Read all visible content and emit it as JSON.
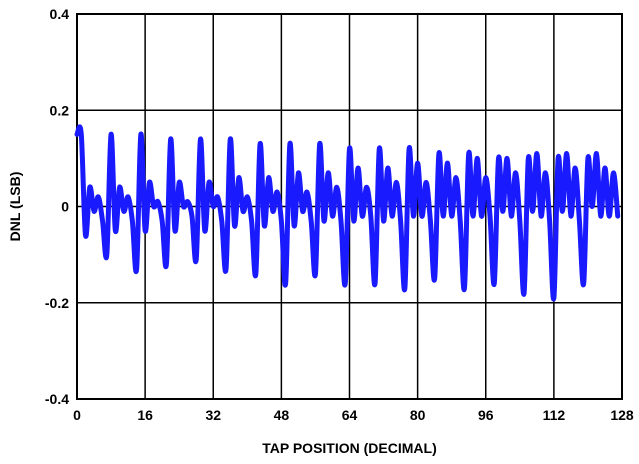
{
  "chart_data": {
    "type": "line",
    "title": "",
    "xlabel": "TAP POSITION (DECIMAL)",
    "ylabel": "DNL (LSB)",
    "xlim": [
      0,
      128
    ],
    "ylim": [
      -0.4,
      0.4
    ],
    "grid": true,
    "xticks": [
      0,
      16,
      32,
      48,
      64,
      80,
      96,
      112,
      128
    ],
    "xtick_labels": [
      "0",
      "16",
      "32",
      "48",
      "64",
      "80",
      "96",
      "112",
      "128"
    ],
    "yticks": [
      0.4,
      0.2,
      0,
      -0.2,
      -0.4
    ],
    "ytick_labels": [
      "0.4",
      "0.2",
      "0",
      "-0.2",
      "-0.4"
    ],
    "line_color": "#1a1aff",
    "series": [
      {
        "x": [
          0,
          1,
          2,
          3,
          4,
          5,
          6,
          7,
          8,
          9,
          10,
          11,
          12,
          13,
          14,
          15,
          16,
          17,
          18,
          19,
          20,
          21,
          22,
          23,
          24,
          25,
          26,
          27,
          28,
          29,
          30,
          31,
          32,
          33,
          34,
          35,
          36,
          37,
          38,
          39,
          40,
          41,
          42,
          43,
          44,
          45,
          46,
          47,
          48,
          49,
          50,
          51,
          52,
          53,
          54,
          55,
          56,
          57,
          58,
          59,
          60,
          61,
          62,
          63,
          64,
          65,
          66,
          67,
          68,
          69,
          70,
          71,
          72,
          73,
          74,
          75,
          76,
          77,
          78,
          79,
          80,
          81,
          82,
          83,
          84,
          85,
          86,
          87,
          88,
          89,
          90,
          91,
          92,
          93,
          94,
          95,
          96,
          97,
          98,
          99,
          100,
          101,
          102,
          103,
          104,
          105,
          106,
          107,
          108,
          109,
          110,
          111,
          112,
          113,
          114,
          115,
          116,
          117,
          118,
          119,
          120,
          121,
          122,
          123,
          124,
          125,
          126,
          127
        ],
        "y": [
          0.15,
          0.15,
          -0.06,
          0.04,
          -0.01,
          0.02,
          -0.03,
          -0.1,
          0.15,
          -0.05,
          0.04,
          -0.01,
          0.02,
          -0.03,
          -0.13,
          0.15,
          -0.05,
          0.05,
          0,
          0.01,
          -0.03,
          -0.12,
          0.14,
          -0.05,
          0.05,
          0,
          0.01,
          -0.02,
          -0.11,
          0.14,
          -0.05,
          0.05,
          0,
          0.02,
          -0.03,
          -0.13,
          0.14,
          -0.04,
          0.06,
          -0.01,
          0.02,
          -0.03,
          -0.14,
          0.13,
          -0.04,
          0.06,
          -0.01,
          0.03,
          -0.03,
          -0.16,
          0.13,
          -0.04,
          0.07,
          -0.01,
          0.03,
          -0.03,
          -0.14,
          0.13,
          -0.03,
          0.07,
          -0.02,
          0.04,
          -0.03,
          -0.16,
          0.12,
          -0.03,
          0.08,
          -0.02,
          0.04,
          -0.02,
          -0.16,
          0.12,
          -0.03,
          0.08,
          -0.02,
          0.05,
          -0.03,
          -0.17,
          0.12,
          -0.02,
          0.09,
          -0.02,
          0.05,
          -0.03,
          -0.15,
          0.11,
          -0.02,
          0.09,
          -0.02,
          0.06,
          -0.03,
          -0.17,
          0.11,
          -0.02,
          0.1,
          -0.02,
          0.06,
          -0.02,
          -0.16,
          0.1,
          -0.01,
          0.1,
          -0.02,
          0.07,
          -0.03,
          -0.18,
          0.1,
          -0.01,
          0.11,
          -0.02,
          0.07,
          -0.03,
          -0.19,
          0.1,
          -0.01,
          0.11,
          -0.02,
          0.08,
          -0.03,
          -0.16,
          0.1,
          0,
          0.11,
          -0.02,
          0.08,
          -0.02,
          0.07,
          -0.02
        ]
      }
    ]
  }
}
